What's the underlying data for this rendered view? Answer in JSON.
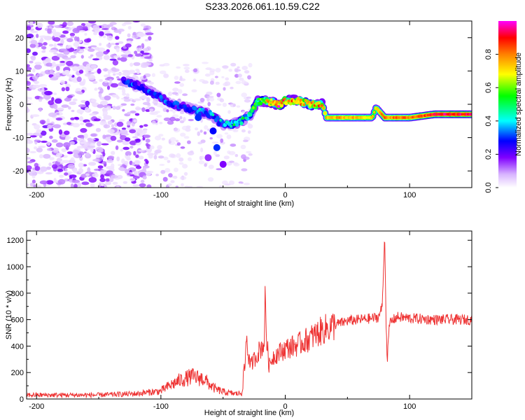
{
  "title": "S233.2026.061.10.59.C22",
  "chart_data": [
    {
      "type": "heatmap",
      "title": "S233.2026.061.10.59.C22",
      "xlabel": "Height of straight line (km)",
      "ylabel": "Frequency (Hz)",
      "xlim": [
        -208,
        150
      ],
      "ylim": [
        -25,
        25
      ],
      "xticks": [
        -200,
        -100,
        0,
        100
      ],
      "yticks": [
        -20,
        -10,
        0,
        10,
        20
      ],
      "colorbar": {
        "label": "Normalized spectral amplitude",
        "range": [
          0,
          1
        ],
        "ticks": [
          0.0,
          0.2,
          0.4,
          0.6,
          0.8
        ],
        "colors": [
          "#ffffff",
          "#d8b4ff",
          "#8000ff",
          "#0000ff",
          "#00ffff",
          "#00ff00",
          "#ffff00",
          "#ff8000",
          "#ff0000",
          "#ff00ff"
        ]
      },
      "ridge": {
        "x": [
          -130,
          -120,
          -110,
          -100,
          -90,
          -80,
          -70,
          -60,
          -50,
          -42,
          -35,
          -28,
          -22,
          -15,
          -5,
          0,
          10,
          20,
          30,
          33,
          45,
          60,
          70,
          73,
          80,
          100,
          120,
          150
        ],
        "y": [
          7,
          6,
          4,
          2,
          0,
          -1,
          -2,
          -3,
          -6,
          -6,
          -5,
          -3,
          1,
          1,
          0,
          1,
          1,
          0,
          0,
          -4,
          -4,
          -4,
          -4,
          -1,
          -4,
          -4,
          -3,
          -3
        ],
        "amplitude": [
          0.35,
          0.35,
          0.35,
          0.35,
          0.35,
          0.35,
          0.38,
          0.4,
          0.4,
          0.45,
          0.45,
          0.5,
          0.55,
          0.7,
          0.85,
          0.8,
          0.8,
          0.8,
          0.75,
          0.75,
          0.75,
          0.75,
          0.7,
          0.7,
          0.8,
          0.8,
          0.9,
          0.9
        ]
      }
    },
    {
      "type": "line",
      "xlabel": "Height of straight line (km)",
      "ylabel": "SNR (10 * v/v)",
      "xlim": [
        -208,
        150
      ],
      "ylim": [
        0,
        1270
      ],
      "xticks": [
        -200,
        -100,
        0,
        100
      ],
      "yticks": [
        0,
        200,
        400,
        600,
        800,
        1000,
        1200
      ],
      "color": "#ee3333",
      "series": [
        {
          "name": "SNR",
          "x": [
            -208,
            -150,
            -120,
            -100,
            -95,
            -85,
            -75,
            -65,
            -60,
            -55,
            -50,
            -45,
            -40,
            -35,
            -32,
            -31,
            -30,
            -28,
            -25,
            -20,
            -17,
            -16,
            -15,
            -13,
            -10,
            0,
            10,
            20,
            30,
            40,
            50,
            60,
            70,
            75,
            78,
            80,
            81,
            82,
            84,
            90,
            100,
            120,
            150
          ],
          "y": [
            30,
            30,
            40,
            60,
            90,
            140,
            170,
            150,
            100,
            70,
            55,
            45,
            40,
            45,
            300,
            520,
            350,
            250,
            300,
            380,
            420,
            780,
            450,
            250,
            320,
            380,
            410,
            460,
            520,
            560,
            590,
            600,
            610,
            620,
            700,
            1250,
            600,
            300,
            580,
            620,
            610,
            600,
            600
          ]
        }
      ]
    }
  ]
}
